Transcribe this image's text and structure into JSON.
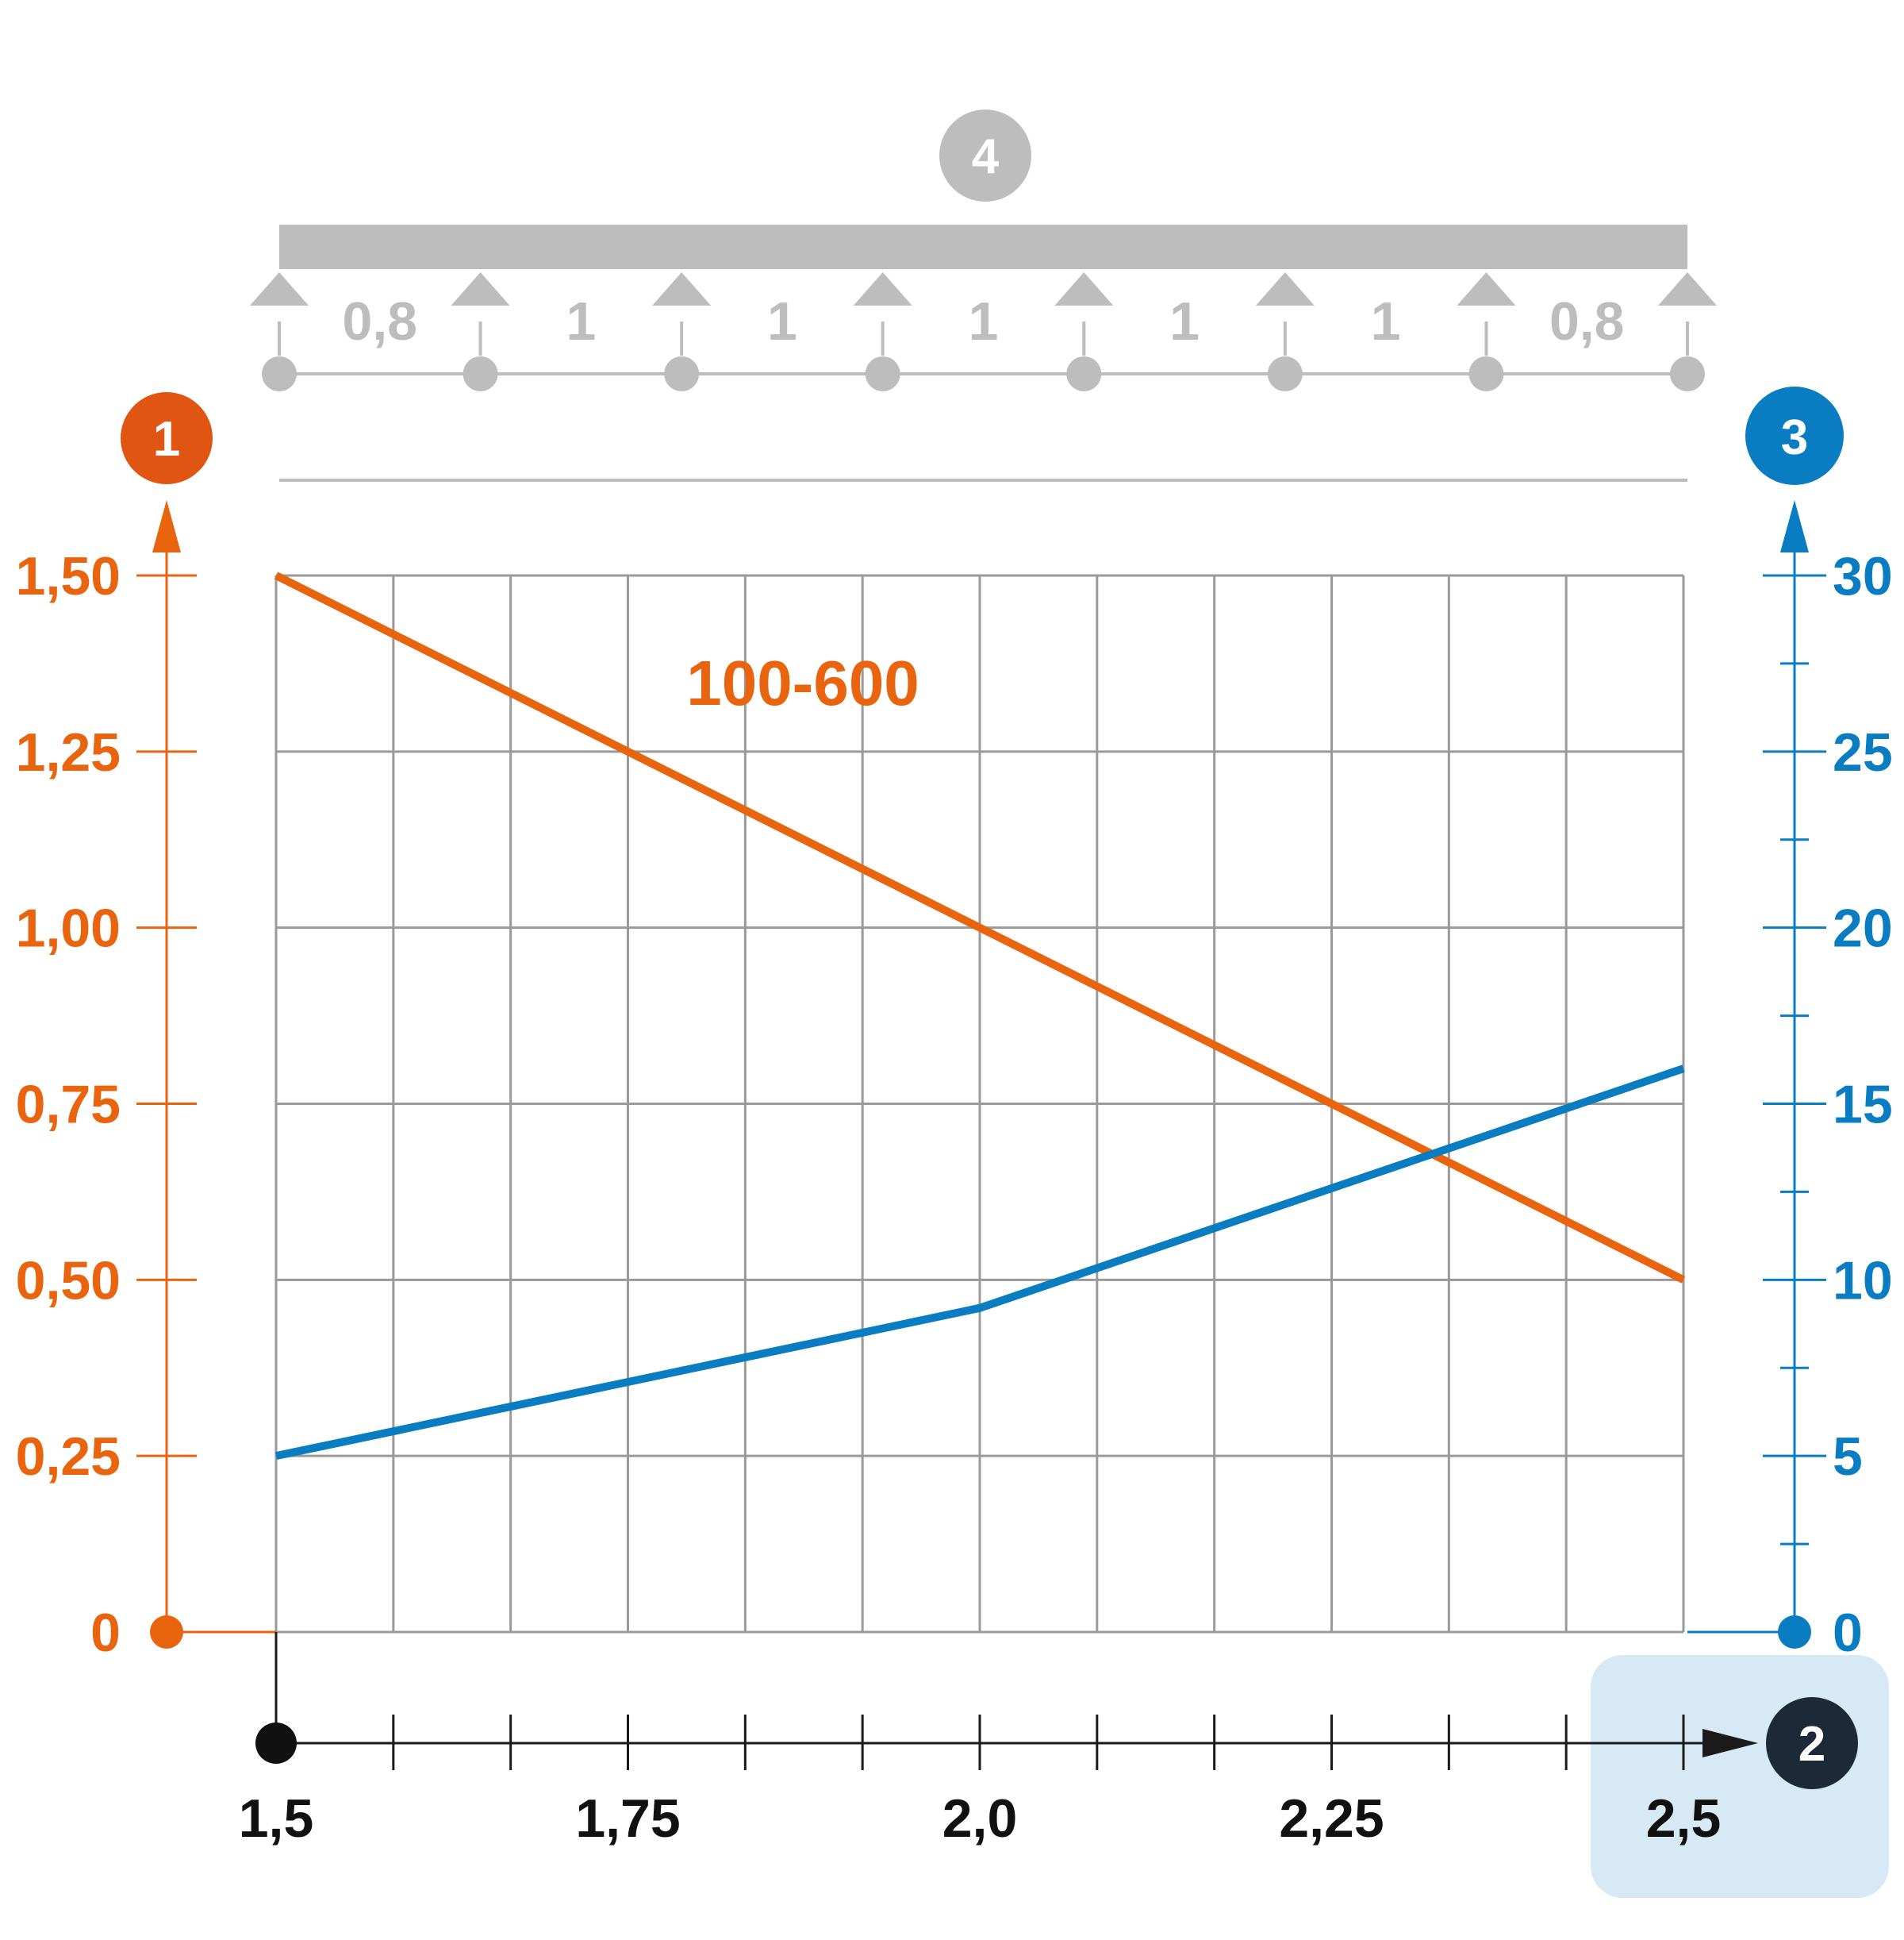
{
  "badges": {
    "left_axis": "1",
    "x_axis": "2",
    "right_axis": "3",
    "beam": "4"
  },
  "beam": {
    "spans": [
      "0,8",
      "1",
      "1",
      "1",
      "1",
      "1",
      "0,8"
    ]
  },
  "colors": {
    "orange": "#E8640E",
    "blue": "#0A7DC2",
    "grid": "#9a9a9a",
    "beam_grey": "#bdbdbd",
    "dark": "#1a1a1a",
    "badge_dark": "#1c2a38",
    "highlight": "#d7e9f5"
  },
  "chart_data": {
    "type": "line",
    "x": [
      1.5,
      1.75,
      2.0,
      2.25,
      2.5
    ],
    "x_tick_labels": [
      "1,5",
      "1,75",
      "2,0",
      "2,25",
      "2,5"
    ],
    "xlim": [
      1.5,
      2.5
    ],
    "y_left": {
      "ylim": [
        0,
        1.5
      ],
      "tick_labels": [
        "0",
        "0,25",
        "0,50",
        "0,75",
        "1,00",
        "1,25",
        "1,50"
      ]
    },
    "y_right": {
      "ylim": [
        0,
        30
      ],
      "tick_labels": [
        "0",
        "5",
        "10",
        "15",
        "20",
        "25",
        "30"
      ]
    },
    "series": [
      {
        "name": "100-600",
        "axis": "left",
        "color": "#E8640E",
        "points": [
          [
            1.5,
            1.5
          ],
          [
            2.0,
            1.0
          ],
          [
            2.5,
            0.5
          ]
        ]
      },
      {
        "axis": "right",
        "color": "#0A7DC2",
        "points": [
          [
            1.5,
            5.0
          ],
          [
            2.0,
            9.2
          ],
          [
            2.5,
            16.0
          ]
        ]
      }
    ],
    "grid": true
  }
}
